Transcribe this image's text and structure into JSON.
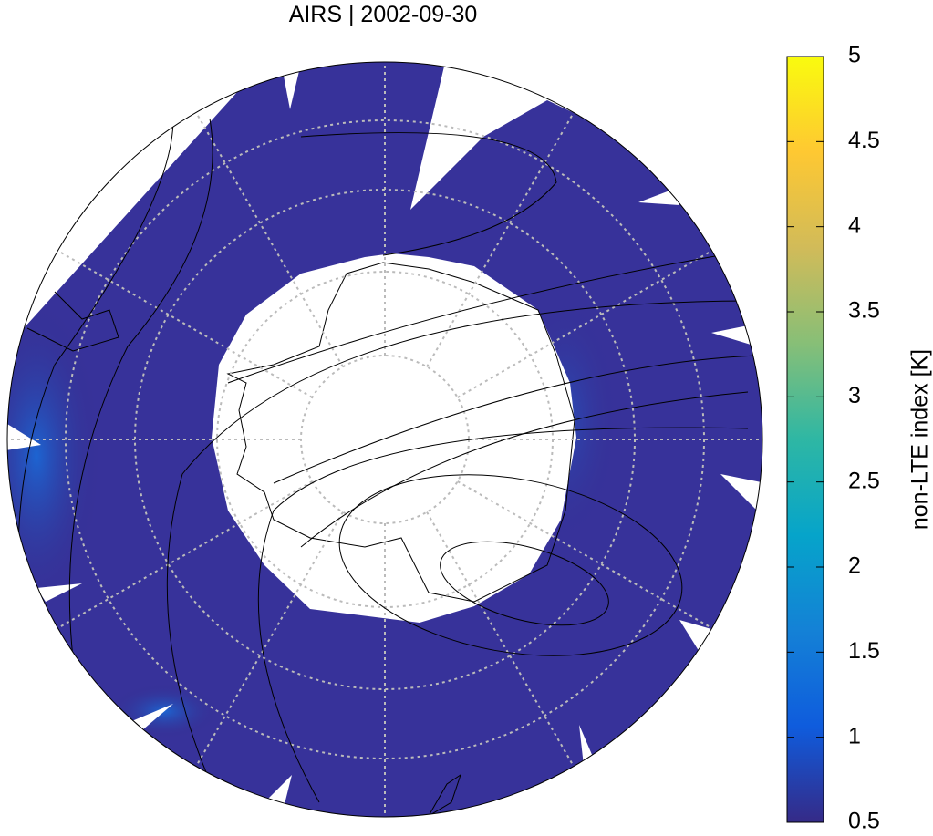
{
  "title": "AIRS | 2002-09-30",
  "colorbar": {
    "label": "non-LTE index [K]",
    "range": [
      0.5,
      5
    ],
    "ticks": [
      0.5,
      1,
      1.5,
      2,
      2.5,
      3,
      3.5,
      4,
      4.5,
      5
    ],
    "colors": [
      "#352a87",
      "#0f5cdd",
      "#1481d6",
      "#06a4ca",
      "#2eb7a4",
      "#87bf77",
      "#d1bb59",
      "#fec832",
      "#f9fb0e"
    ]
  }
}
